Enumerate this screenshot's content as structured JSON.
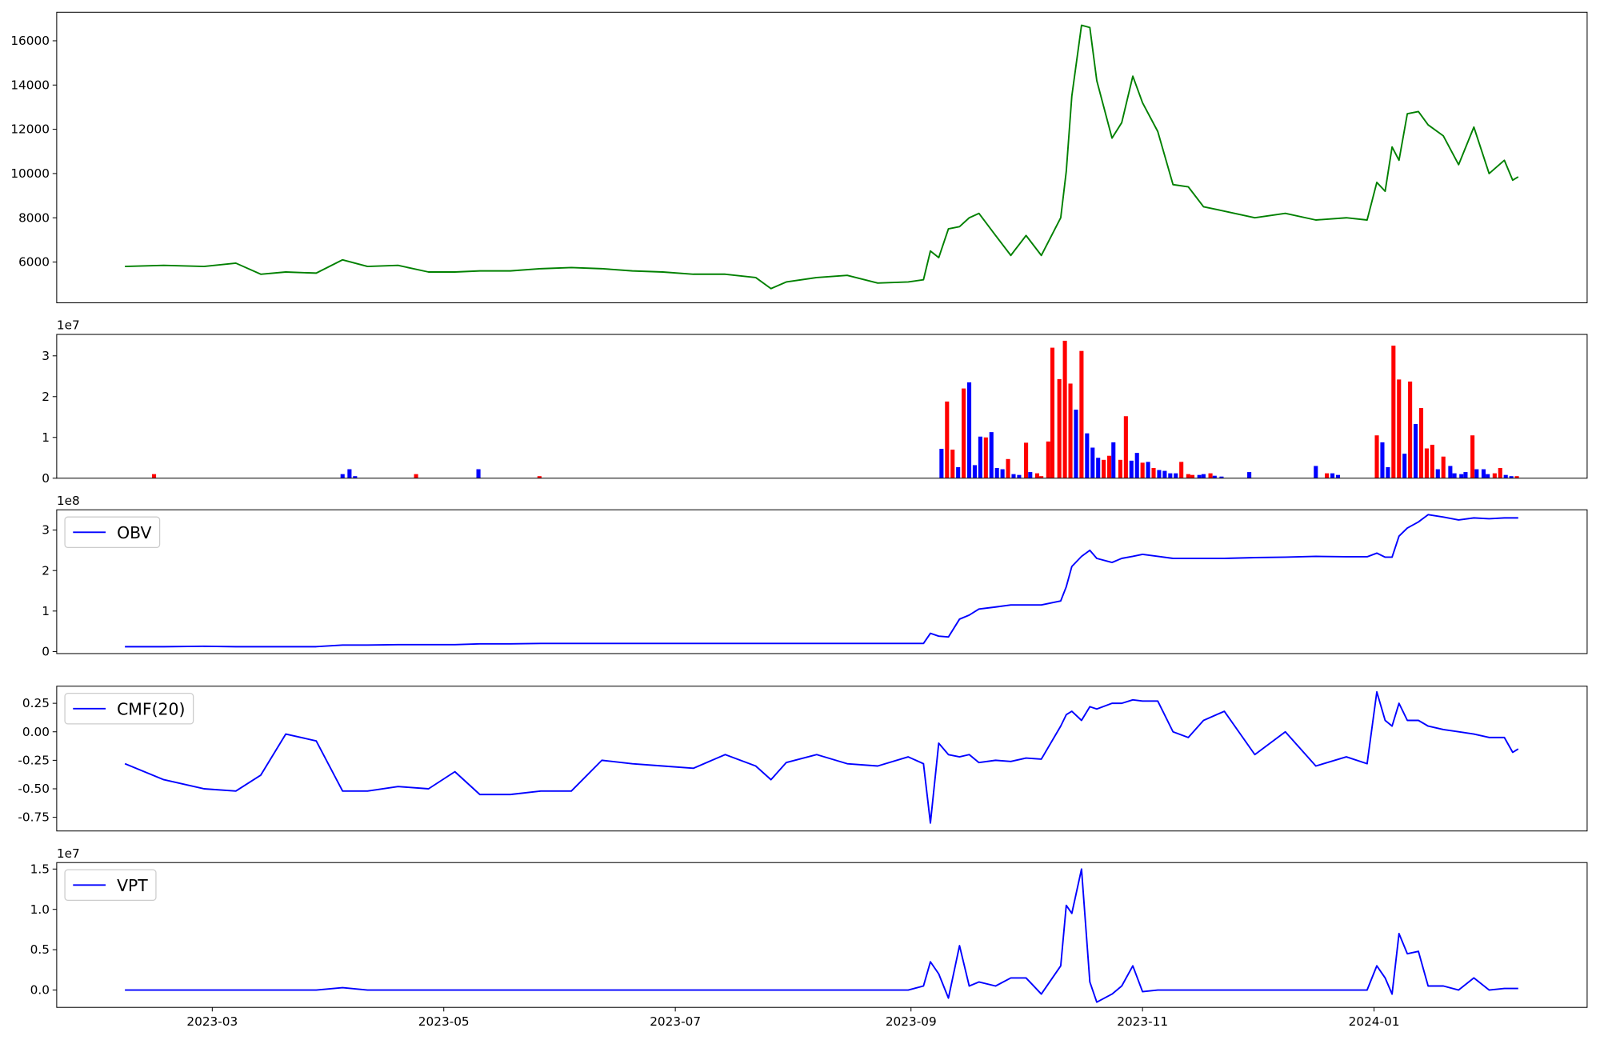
{
  "chart_data": [
    {
      "type": "line",
      "color": "#008000",
      "x": [
        2023.099,
        2023.127,
        2023.156,
        2023.179,
        2023.197,
        2023.215,
        2023.237,
        2023.256,
        2023.274,
        2023.296,
        2023.318,
        2023.337,
        2023.355,
        2023.377,
        2023.399,
        2023.421,
        2023.443,
        2023.465,
        2023.487,
        2023.509,
        2023.532,
        2023.554,
        2023.565,
        2023.576,
        2023.598,
        2023.62,
        2023.642,
        2023.664,
        2023.675,
        2023.68,
        2023.686,
        2023.693,
        2023.701,
        2023.708,
        2023.715,
        2023.727,
        2023.738,
        2023.749,
        2023.76,
        2023.774,
        2023.778,
        2023.782,
        2023.789,
        2023.795,
        2023.8,
        2023.811,
        2023.818,
        2023.826,
        2023.833,
        2023.844,
        2023.855,
        2023.866,
        2023.877,
        2023.892,
        2023.914,
        2023.936,
        2023.958,
        2023.98,
        2023.995,
        2024.002,
        2024.008,
        2024.013,
        2024.018,
        2024.024,
        2024.032,
        2024.039,
        2024.05,
        2024.061,
        2024.072,
        2024.083,
        2024.094,
        2024.1,
        2024.104
      ],
      "values": [
        5800,
        5850,
        5800,
        5950,
        5450,
        5550,
        5500,
        6100,
        5800,
        5850,
        5550,
        5550,
        5600,
        5600,
        5700,
        5750,
        5700,
        5600,
        5550,
        5450,
        5450,
        5300,
        4800,
        5100,
        5300,
        5400,
        5050,
        5100,
        5200,
        6500,
        6200,
        7500,
        7600,
        8000,
        8200,
        7200,
        6300,
        7200,
        6300,
        8000,
        10100,
        13500,
        16700,
        16600,
        14200,
        11600,
        12300,
        14400,
        13200,
        11900,
        9500,
        9400,
        8500,
        8300,
        8000,
        8200,
        7900,
        8000,
        7900,
        9600,
        9200,
        11200,
        10600,
        12700,
        12800,
        12200,
        11700,
        10400,
        12100,
        10000,
        10600,
        9700,
        9850
      ],
      "xlim": [
        2023.0498,
        2024.1537
      ],
      "ylim": [
        4157,
        17290
      ],
      "yticks": [
        6000,
        8000,
        10000,
        12000,
        14000,
        16000
      ]
    },
    {
      "type": "bar",
      "y_offset_label": "1e7",
      "x": [
        2023.12,
        2023.256,
        2023.261,
        2023.265,
        2023.309,
        2023.354,
        2023.398,
        2023.688,
        2023.692,
        2023.696,
        2023.7,
        2023.704,
        2023.708,
        2023.712,
        2023.716,
        2023.72,
        2023.724,
        2023.728,
        2023.732,
        2023.736,
        2023.74,
        2023.744,
        2023.749,
        2023.752,
        2023.757,
        2023.76,
        2023.765,
        2023.768,
        2023.773,
        2023.777,
        2023.781,
        2023.785,
        2023.789,
        2023.793,
        2023.797,
        2023.801,
        2023.805,
        2023.809,
        2023.812,
        2023.817,
        2023.821,
        2023.825,
        2023.829,
        2023.833,
        2023.837,
        2023.841,
        2023.845,
        2023.849,
        2023.853,
        2023.857,
        2023.861,
        2023.866,
        2023.869,
        2023.874,
        2023.877,
        2023.882,
        2023.885,
        2023.89,
        2023.91,
        2023.958,
        2023.966,
        2023.97,
        2023.974,
        2024.002,
        2024.006,
        2024.01,
        2024.014,
        2024.018,
        2024.022,
        2024.026,
        2024.03,
        2024.034,
        2024.038,
        2024.042,
        2024.046,
        2024.05,
        2024.055,
        2024.058,
        2024.063,
        2024.066,
        2024.071,
        2024.074,
        2024.079,
        2024.082,
        2024.087,
        2024.091,
        2024.095,
        2024.099,
        2024.103
      ],
      "values": [
        1000000,
        1000000,
        2200000,
        500000,
        1000000,
        2200000,
        500000,
        7200000,
        18800000,
        7000000,
        2700000,
        22000000,
        23500000,
        3200000,
        10200000,
        10000000,
        11300000,
        2500000,
        2200000,
        4700000,
        1000000,
        800000,
        8700000,
        1500000,
        1200000,
        500000,
        9000000,
        32000000,
        24300000,
        33700000,
        23200000,
        16800000,
        31200000,
        11000000,
        7500000,
        5000000,
        4500000,
        5500000,
        8800000,
        4500000,
        15200000,
        4300000,
        6200000,
        3800000,
        4000000,
        2500000,
        2000000,
        1800000,
        1200000,
        1200000,
        4000000,
        1000000,
        800000,
        800000,
        1000000,
        1200000,
        600000,
        400000,
        1500000,
        3000000,
        1200000,
        1200000,
        800000,
        10500000,
        8800000,
        2700000,
        32500000,
        24200000,
        6000000,
        23700000,
        13300000,
        17200000,
        7300000,
        8200000,
        2200000,
        5300000,
        3000000,
        1200000,
        1000000,
        1500000,
        10500000,
        2200000,
        2200000,
        1000000,
        1200000,
        2500000,
        800000,
        500000,
        500000
      ],
      "colors": [
        "#ff0000",
        "#0000ff",
        "#0000ff",
        "#0000ff",
        "#ff0000",
        "#0000ff",
        "#ff0000",
        "#0000ff",
        "#ff0000",
        "#ff0000",
        "#0000ff",
        "#ff0000",
        "#0000ff",
        "#0000ff",
        "#0000ff",
        "#ff0000",
        "#0000ff",
        "#0000ff",
        "#0000ff",
        "#ff0000",
        "#0000ff",
        "#0000ff",
        "#ff0000",
        "#0000ff",
        "#ff0000",
        "#ff0000",
        "#ff0000",
        "#ff0000",
        "#ff0000",
        "#ff0000",
        "#ff0000",
        "#0000ff",
        "#ff0000",
        "#0000ff",
        "#0000ff",
        "#0000ff",
        "#ff0000",
        "#ff0000",
        "#0000ff",
        "#ff0000",
        "#ff0000",
        "#0000ff",
        "#0000ff",
        "#ff0000",
        "#0000ff",
        "#ff0000",
        "#0000ff",
        "#0000ff",
        "#0000ff",
        "#0000ff",
        "#ff0000",
        "#ff0000",
        "#ff0000",
        "#0000ff",
        "#0000ff",
        "#ff0000",
        "#0000ff",
        "#0000ff",
        "#0000ff",
        "#0000ff",
        "#ff0000",
        "#0000ff",
        "#0000ff",
        "#ff0000",
        "#0000ff",
        "#0000ff",
        "#ff0000",
        "#ff0000",
        "#0000ff",
        "#ff0000",
        "#0000ff",
        "#ff0000",
        "#ff0000",
        "#ff0000",
        "#0000ff",
        "#ff0000",
        "#0000ff",
        "#0000ff",
        "#0000ff",
        "#0000ff",
        "#ff0000",
        "#0000ff",
        "#0000ff",
        "#0000ff",
        "#ff0000",
        "#ff0000",
        "#0000ff",
        "#0000ff",
        "#ff0000"
      ],
      "xlim": [
        2023.0498,
        2024.1537
      ],
      "ylim": [
        0,
        35250000
      ],
      "yticks": [
        0,
        {
          "value": 10000000,
          "label": "1"
        },
        {
          "value": 20000000,
          "label": "2"
        },
        {
          "value": 30000000,
          "label": "3"
        }
      ]
    },
    {
      "type": "line",
      "y_offset_label": "1e8",
      "legend": "upper left",
      "x": [
        2023.099,
        2023.127,
        2023.156,
        2023.179,
        2023.197,
        2023.215,
        2023.237,
        2023.256,
        2023.274,
        2023.296,
        2023.318,
        2023.337,
        2023.355,
        2023.377,
        2023.399,
        2023.421,
        2023.443,
        2023.465,
        2023.487,
        2023.509,
        2023.532,
        2023.554,
        2023.565,
        2023.576,
        2023.598,
        2023.62,
        2023.642,
        2023.664,
        2023.675,
        2023.68,
        2023.686,
        2023.693,
        2023.701,
        2023.708,
        2023.715,
        2023.727,
        2023.738,
        2023.749,
        2023.76,
        2023.774,
        2023.778,
        2023.782,
        2023.789,
        2023.795,
        2023.8,
        2023.811,
        2023.818,
        2023.826,
        2023.833,
        2023.844,
        2023.855,
        2023.866,
        2023.877,
        2023.892,
        2023.914,
        2023.936,
        2023.958,
        2023.98,
        2023.995,
        2024.002,
        2024.008,
        2024.013,
        2024.018,
        2024.024,
        2024.032,
        2024.039,
        2024.05,
        2024.061,
        2024.072,
        2024.083,
        2024.094,
        2024.1,
        2024.104
      ],
      "series": [
        {
          "name": "OBV",
          "color": "#0000ff",
          "values": [
            12000000,
            12000000,
            13000000,
            12000000,
            12000000,
            12000000,
            12000000,
            16000000,
            16000000,
            17000000,
            17000000,
            17000000,
            19000000,
            19000000,
            20000000,
            20000000,
            20000000,
            20000000,
            20000000,
            20000000,
            20000000,
            20000000,
            20000000,
            20000000,
            20000000,
            20000000,
            20000000,
            20000000,
            20000000,
            45000000,
            38000000,
            36000000,
            80000000,
            90000000,
            105000000,
            110000000,
            115000000,
            115000000,
            115000000,
            125000000,
            160000000,
            210000000,
            235000000,
            250000000,
            230000000,
            220000000,
            230000000,
            235000000,
            240000000,
            235000000,
            230000000,
            230000000,
            230000000,
            230000000,
            232000000,
            233000000,
            235000000,
            234000000,
            234000000,
            243000000,
            233000000,
            233000000,
            285000000,
            305000000,
            320000000,
            338000000,
            332000000,
            325000000,
            330000000,
            328000000,
            330000000,
            330000000,
            330000000
          ]
        }
      ],
      "xlim": [
        2023.0498,
        2024.1537
      ],
      "ylim": [
        -5000000,
        350000000
      ],
      "yticks": [
        0,
        {
          "value": 100000000,
          "label": "1"
        },
        {
          "value": 200000000,
          "label": "2"
        },
        {
          "value": 300000000,
          "label": "3"
        }
      ]
    },
    {
      "type": "line",
      "legend": "upper left",
      "x": [
        2023.099,
        2023.127,
        2023.156,
        2023.179,
        2023.197,
        2023.215,
        2023.237,
        2023.256,
        2023.274,
        2023.296,
        2023.318,
        2023.337,
        2023.355,
        2023.377,
        2023.399,
        2023.421,
        2023.443,
        2023.465,
        2023.487,
        2023.509,
        2023.532,
        2023.554,
        2023.565,
        2023.576,
        2023.598,
        2023.62,
        2023.642,
        2023.664,
        2023.675,
        2023.68,
        2023.686,
        2023.693,
        2023.701,
        2023.708,
        2023.715,
        2023.727,
        2023.738,
        2023.749,
        2023.76,
        2023.774,
        2023.778,
        2023.782,
        2023.789,
        2023.795,
        2023.8,
        2023.811,
        2023.818,
        2023.826,
        2023.833,
        2023.844,
        2023.855,
        2023.866,
        2023.877,
        2023.892,
        2023.914,
        2023.936,
        2023.958,
        2023.98,
        2023.995,
        2024.002,
        2024.008,
        2024.013,
        2024.018,
        2024.024,
        2024.032,
        2024.039,
        2024.05,
        2024.061,
        2024.072,
        2024.083,
        2024.094,
        2024.1,
        2024.104
      ],
      "series": [
        {
          "name": "CMF(20)",
          "color": "#0000ff",
          "values": [
            -0.28,
            -0.42,
            -0.5,
            -0.52,
            -0.38,
            -0.02,
            -0.08,
            -0.52,
            -0.52,
            -0.48,
            -0.5,
            -0.35,
            -0.55,
            -0.55,
            -0.52,
            -0.52,
            -0.25,
            -0.28,
            -0.3,
            -0.32,
            -0.2,
            -0.3,
            -0.42,
            -0.27,
            -0.2,
            -0.28,
            -0.3,
            -0.22,
            -0.28,
            -0.8,
            -0.1,
            -0.2,
            -0.22,
            -0.2,
            -0.27,
            -0.25,
            -0.26,
            -0.23,
            -0.24,
            0.05,
            0.15,
            0.18,
            0.1,
            0.22,
            0.2,
            0.25,
            0.25,
            0.28,
            0.27,
            0.27,
            0,
            -0.05,
            0.1,
            0.18,
            -0.2,
            0,
            -0.3,
            -0.22,
            -0.28,
            0.35,
            0.1,
            0.05,
            0.25,
            0.1,
            0.1,
            0.05,
            0.02,
            0,
            -0.02,
            -0.05,
            -0.05,
            -0.18,
            -0.15
          ]
        }
      ],
      "xlim": [
        2023.0498,
        2024.1537
      ],
      "ylim": [
        -0.87,
        0.4
      ],
      "yticks": [
        -0.75,
        {
          "value": -0.5,
          "label": "-0.50"
        },
        -0.25,
        {
          "value": 0,
          "label": "0.00"
        },
        0.25
      ]
    },
    {
      "type": "line",
      "y_offset_label": "1e7",
      "legend": "upper left",
      "x": [
        2023.099,
        2023.127,
        2023.156,
        2023.179,
        2023.197,
        2023.215,
        2023.237,
        2023.256,
        2023.274,
        2023.296,
        2023.318,
        2023.337,
        2023.355,
        2023.377,
        2023.399,
        2023.421,
        2023.443,
        2023.465,
        2023.487,
        2023.509,
        2023.532,
        2023.554,
        2023.565,
        2023.576,
        2023.598,
        2023.62,
        2023.642,
        2023.664,
        2023.675,
        2023.68,
        2023.686,
        2023.693,
        2023.701,
        2023.708,
        2023.715,
        2023.727,
        2023.738,
        2023.749,
        2023.76,
        2023.774,
        2023.778,
        2023.782,
        2023.789,
        2023.795,
        2023.8,
        2023.811,
        2023.818,
        2023.826,
        2023.833,
        2023.844,
        2023.855,
        2023.866,
        2023.877,
        2023.892,
        2023.914,
        2023.936,
        2023.958,
        2023.98,
        2023.995,
        2024.002,
        2024.008,
        2024.013,
        2024.018,
        2024.024,
        2024.032,
        2024.039,
        2024.05,
        2024.061,
        2024.072,
        2024.083,
        2024.094,
        2024.1,
        2024.104
      ],
      "series": [
        {
          "name": "VPT",
          "color": "#0000ff",
          "values": [
            0,
            0,
            0,
            0,
            0,
            0,
            0,
            300000,
            0,
            0,
            0,
            0,
            0,
            0,
            0,
            0,
            0,
            0,
            0,
            0,
            0,
            0,
            0,
            0,
            0,
            0,
            0,
            0,
            500000,
            3500000,
            2000000,
            -1000000,
            5500000,
            500000,
            1000000,
            500000,
            1500000,
            1500000,
            -500000,
            3000000,
            10500000,
            9500000,
            15000000,
            1000000,
            -1500000,
            -500000,
            500000,
            3000000,
            -200000,
            0,
            0,
            0,
            0,
            0,
            0,
            0,
            0,
            0,
            0,
            3000000,
            1500000,
            -500000,
            7000000,
            4500000,
            4800000,
            500000,
            500000,
            0,
            1500000,
            0,
            200000,
            200000,
            200000
          ]
        }
      ],
      "xlim": [
        2023.0498,
        2024.1537
      ],
      "ylim": [
        -2150000,
        15800000
      ],
      "yticks": [
        {
          "value": 0,
          "label": "0.0"
        },
        {
          "value": 5000000,
          "label": "0.5"
        },
        {
          "value": 10000000,
          "label": "1.0"
        },
        {
          "value": 15000000,
          "label": "1.5"
        }
      ],
      "xticks": [
        {
          "value": 2023.162,
          "label": "2023-03"
        },
        {
          "value": 2023.329,
          "label": "2023-05"
        },
        {
          "value": 2023.496,
          "label": "2023-07"
        },
        {
          "value": 2023.666,
          "label": "2023-09"
        },
        {
          "value": 2023.833,
          "label": "2023-11"
        },
        {
          "value": 2024.0,
          "label": "2024-01"
        }
      ]
    }
  ]
}
